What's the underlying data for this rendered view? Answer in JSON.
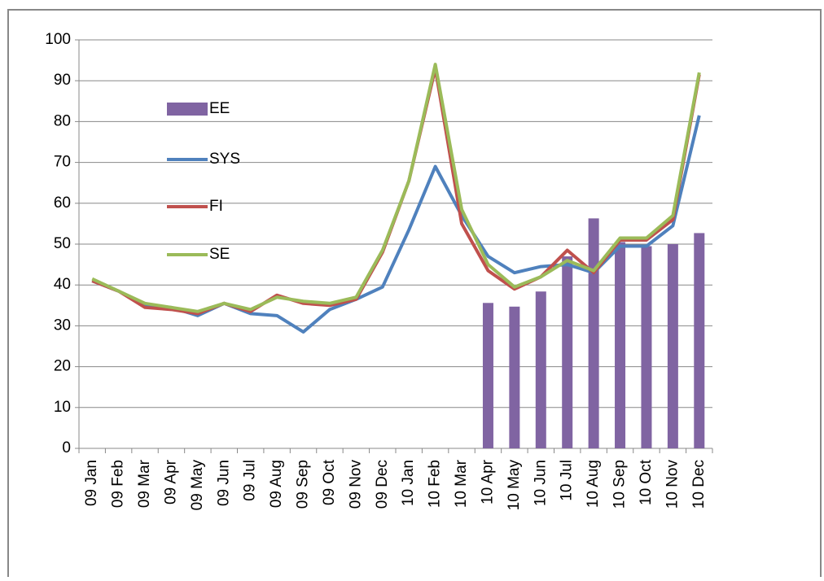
{
  "chart_data": {
    "type": "combo",
    "categories": [
      "09 Jan",
      "09 Feb",
      "09 Mar",
      "09 Apr",
      "09 May",
      "09 Jun",
      "09 Jul",
      "09 Aug",
      "09 Sep",
      "09 Oct",
      "09 Nov",
      "09 Dec",
      "10 Jan",
      "10 Feb",
      "10 Mar",
      "10 Apr",
      "10 May",
      "10 Jun",
      "10 Jul",
      "10 Aug",
      "10 Sep",
      "10 Oct",
      "10 Nov",
      "10 Dec"
    ],
    "series": [
      {
        "name": "EE",
        "type": "bar",
        "color": "#8064a2",
        "values": [
          null,
          null,
          null,
          null,
          null,
          null,
          null,
          null,
          null,
          null,
          null,
          null,
          null,
          null,
          null,
          35.6,
          34.7,
          38.4,
          47,
          56.3,
          50.5,
          49.5,
          50,
          52.7
        ]
      },
      {
        "name": "SYS",
        "type": "line",
        "color": "#4f81bd",
        "values": [
          41,
          38.5,
          35,
          34.5,
          32.5,
          35.5,
          33,
          32.5,
          28.5,
          34,
          36.5,
          39.5,
          53.5,
          69,
          57,
          47,
          43,
          44.5,
          45,
          43,
          49.5,
          49.5,
          54.5,
          81.5
        ]
      },
      {
        "name": "FI",
        "type": "line",
        "color": "#c0504d",
        "values": [
          41,
          38.5,
          34.5,
          34,
          33,
          35.5,
          33.5,
          37.5,
          35.5,
          35,
          36.5,
          48,
          65.5,
          93,
          55,
          43.5,
          39,
          42,
          48.5,
          43,
          51,
          51,
          56,
          91.5
        ]
      },
      {
        "name": "SE",
        "type": "line",
        "color": "#9bbb59",
        "values": [
          41.5,
          38.5,
          35.5,
          34.5,
          33.5,
          35.5,
          34,
          37,
          36,
          35.5,
          37,
          48.5,
          65.5,
          94,
          58.5,
          45,
          39.5,
          42,
          46,
          43.5,
          51.5,
          51.5,
          57,
          92
        ]
      }
    ],
    "ylim": [
      0,
      100
    ],
    "yticks": [
      0,
      10,
      20,
      30,
      40,
      50,
      60,
      70,
      80,
      90,
      100
    ],
    "grid": true
  }
}
